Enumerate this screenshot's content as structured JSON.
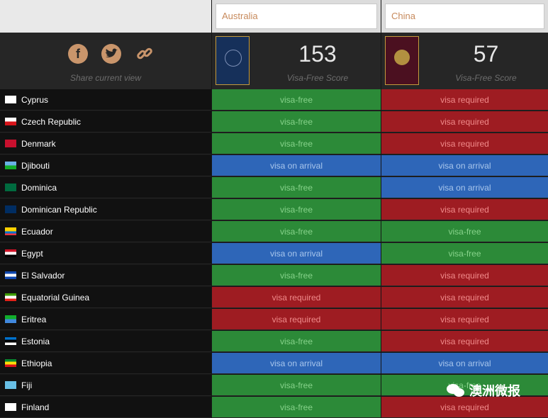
{
  "compare": {
    "columns": [
      {
        "name": "Australia",
        "score": "153",
        "score_label": "Visa-Free Score"
      },
      {
        "name": "China",
        "score": "57",
        "score_label": "Visa-Free Score"
      }
    ]
  },
  "share": {
    "label": "Share current view",
    "icons": [
      "facebook-icon",
      "twitter-icon",
      "link-icon"
    ]
  },
  "status_labels": {
    "free": "visa-free",
    "required": "visa required",
    "arrival": "visa on arrival"
  },
  "colors": {
    "visa_free": "#2c8a38",
    "visa_required": "#9e1c22",
    "visa_on_arrival": "#2e66b8"
  },
  "rows": [
    {
      "country": "Cyprus",
      "s": [
        "free",
        "required"
      ]
    },
    {
      "country": "Czech Republic",
      "s": [
        "free",
        "required"
      ]
    },
    {
      "country": "Denmark",
      "s": [
        "free",
        "required"
      ]
    },
    {
      "country": "Djibouti",
      "s": [
        "arrival",
        "arrival"
      ]
    },
    {
      "country": "Dominica",
      "s": [
        "free",
        "arrival"
      ]
    },
    {
      "country": "Dominican Republic",
      "s": [
        "free",
        "required"
      ]
    },
    {
      "country": "Ecuador",
      "s": [
        "free",
        "free"
      ]
    },
    {
      "country": "Egypt",
      "s": [
        "arrival",
        "free"
      ]
    },
    {
      "country": "El Salvador",
      "s": [
        "free",
        "required"
      ]
    },
    {
      "country": "Equatorial Guinea",
      "s": [
        "required",
        "required"
      ]
    },
    {
      "country": "Eritrea",
      "s": [
        "required",
        "required"
      ]
    },
    {
      "country": "Estonia",
      "s": [
        "free",
        "required"
      ]
    },
    {
      "country": "Ethiopia",
      "s": [
        "arrival",
        "arrival"
      ]
    },
    {
      "country": "Fiji",
      "s": [
        "free",
        "free"
      ]
    },
    {
      "country": "Finland",
      "s": [
        "free",
        "required"
      ]
    }
  ],
  "watermark": {
    "text": "澳洲微报"
  }
}
